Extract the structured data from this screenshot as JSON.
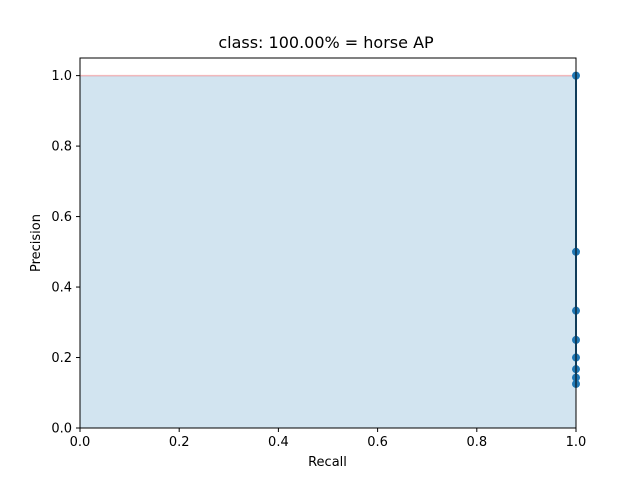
{
  "chart_data": {
    "type": "scatter",
    "title": "class: 100.00% = horse AP",
    "xlabel": "Recall",
    "ylabel": "Precision",
    "xlim": [
      0.0,
      1.0
    ],
    "ylim": [
      0.0,
      1.05
    ],
    "xticks": [
      "0.0",
      "0.2",
      "0.4",
      "0.6",
      "0.8",
      "1.0"
    ],
    "yticks": [
      "0.0",
      "0.2",
      "0.4",
      "0.6",
      "0.8",
      "1.0"
    ],
    "grid": false,
    "series": [
      {
        "type": "line",
        "x": [
          1.0,
          1.0,
          1.0,
          1.0,
          1.0,
          1.0,
          1.0,
          1.0
        ],
        "y": [
          1.0,
          0.5,
          0.333,
          0.25,
          0.2,
          0.167,
          0.143,
          0.125
        ],
        "color": "#1f77b4"
      },
      {
        "type": "area",
        "x": [
          0.0,
          1.0
        ],
        "y": [
          1.0,
          1.0
        ],
        "color": "#1f77b4"
      },
      {
        "type": "line",
        "x": [
          0.0,
          1.0
        ],
        "y": [
          1.0,
          1.0
        ],
        "color": "#ff0000"
      }
    ]
  }
}
